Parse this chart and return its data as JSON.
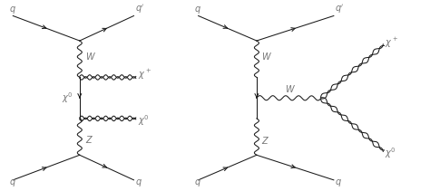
{
  "bg_color": "#ffffff",
  "line_color": "#1a1a1a",
  "label_color": "#777777",
  "figsize": [
    4.74,
    2.11
  ],
  "dpi": 100
}
